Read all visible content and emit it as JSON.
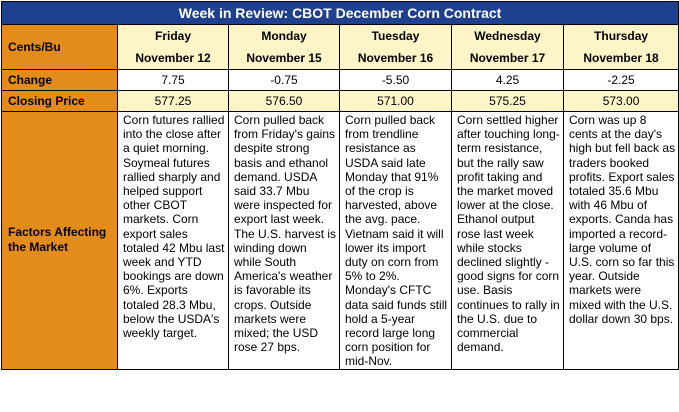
{
  "title": "Week in Review: CBOT December Corn Contract",
  "labels": {
    "units": "Cents/Bu",
    "change": "Change",
    "closing_price": "Closing Price",
    "factors": "Factors Affecting the Market"
  },
  "days": [
    {
      "day": "Friday",
      "date": "November 12",
      "change": "7.75",
      "closing": "577.25",
      "factors": "Corn futures rallied into the close after a quiet morning. Soymeal futures rallied sharply and helped support other CBOT markets. Corn export sales totaled 42 Mbu last week and YTD bookings are down 6%. Exports totaled 28.3 Mbu, below the USDA's weekly target."
    },
    {
      "day": "Monday",
      "date": "November 15",
      "change": "-0.75",
      "closing": "576.50",
      "factors": "Corn pulled back from Friday's gains despite strong basis and ethanol demand. USDA said 33.7 Mbu were inspected for export last week. The U.S. harvest is winding down while South America's weather is favorable its crops. Outside markets were mixed; the USD rose 27 bps."
    },
    {
      "day": "Tuesday",
      "date": "November 16",
      "change": "-5.50",
      "closing": "571.00",
      "factors": "Corn pulled back from trendline resistance as USDA said late Monday that 91% of the crop is harvested, above the avg. pace. Vietnam said it will lower its import duty on corn from 5% to 2%. Monday's CFTC data said funds still hold a 5-year record large long corn position for mid-Nov."
    },
    {
      "day": "Wednesday",
      "date": "November 17",
      "change": "4.25",
      "closing": "575.25",
      "factors": "Corn settled higher after touching long-term resistance, but the rally saw profit taking and the market moved lower at the close. Ethanol output rose last week while stocks declined slightly - good signs for corn use. Basis continues to rally in the U.S. due to commercial demand."
    },
    {
      "day": "Thursday",
      "date": "November 18",
      "change": "-2.25",
      "closing": "573.00",
      "factors": "Corn was up 8 cents at the day's high but fell back as traders booked profits. Export sales totaled 35.6 Mbu with 46 Mbu of exports. Canda has imported a record-large volume of U.S. corn so far this year. Outside markets were mixed with the U.S. dollar down 30 bps."
    }
  ],
  "colors": {
    "title_bg": "#1f3f8f",
    "label_bg": "#e48c1a",
    "highlight_bg": "#fdf5c8"
  }
}
